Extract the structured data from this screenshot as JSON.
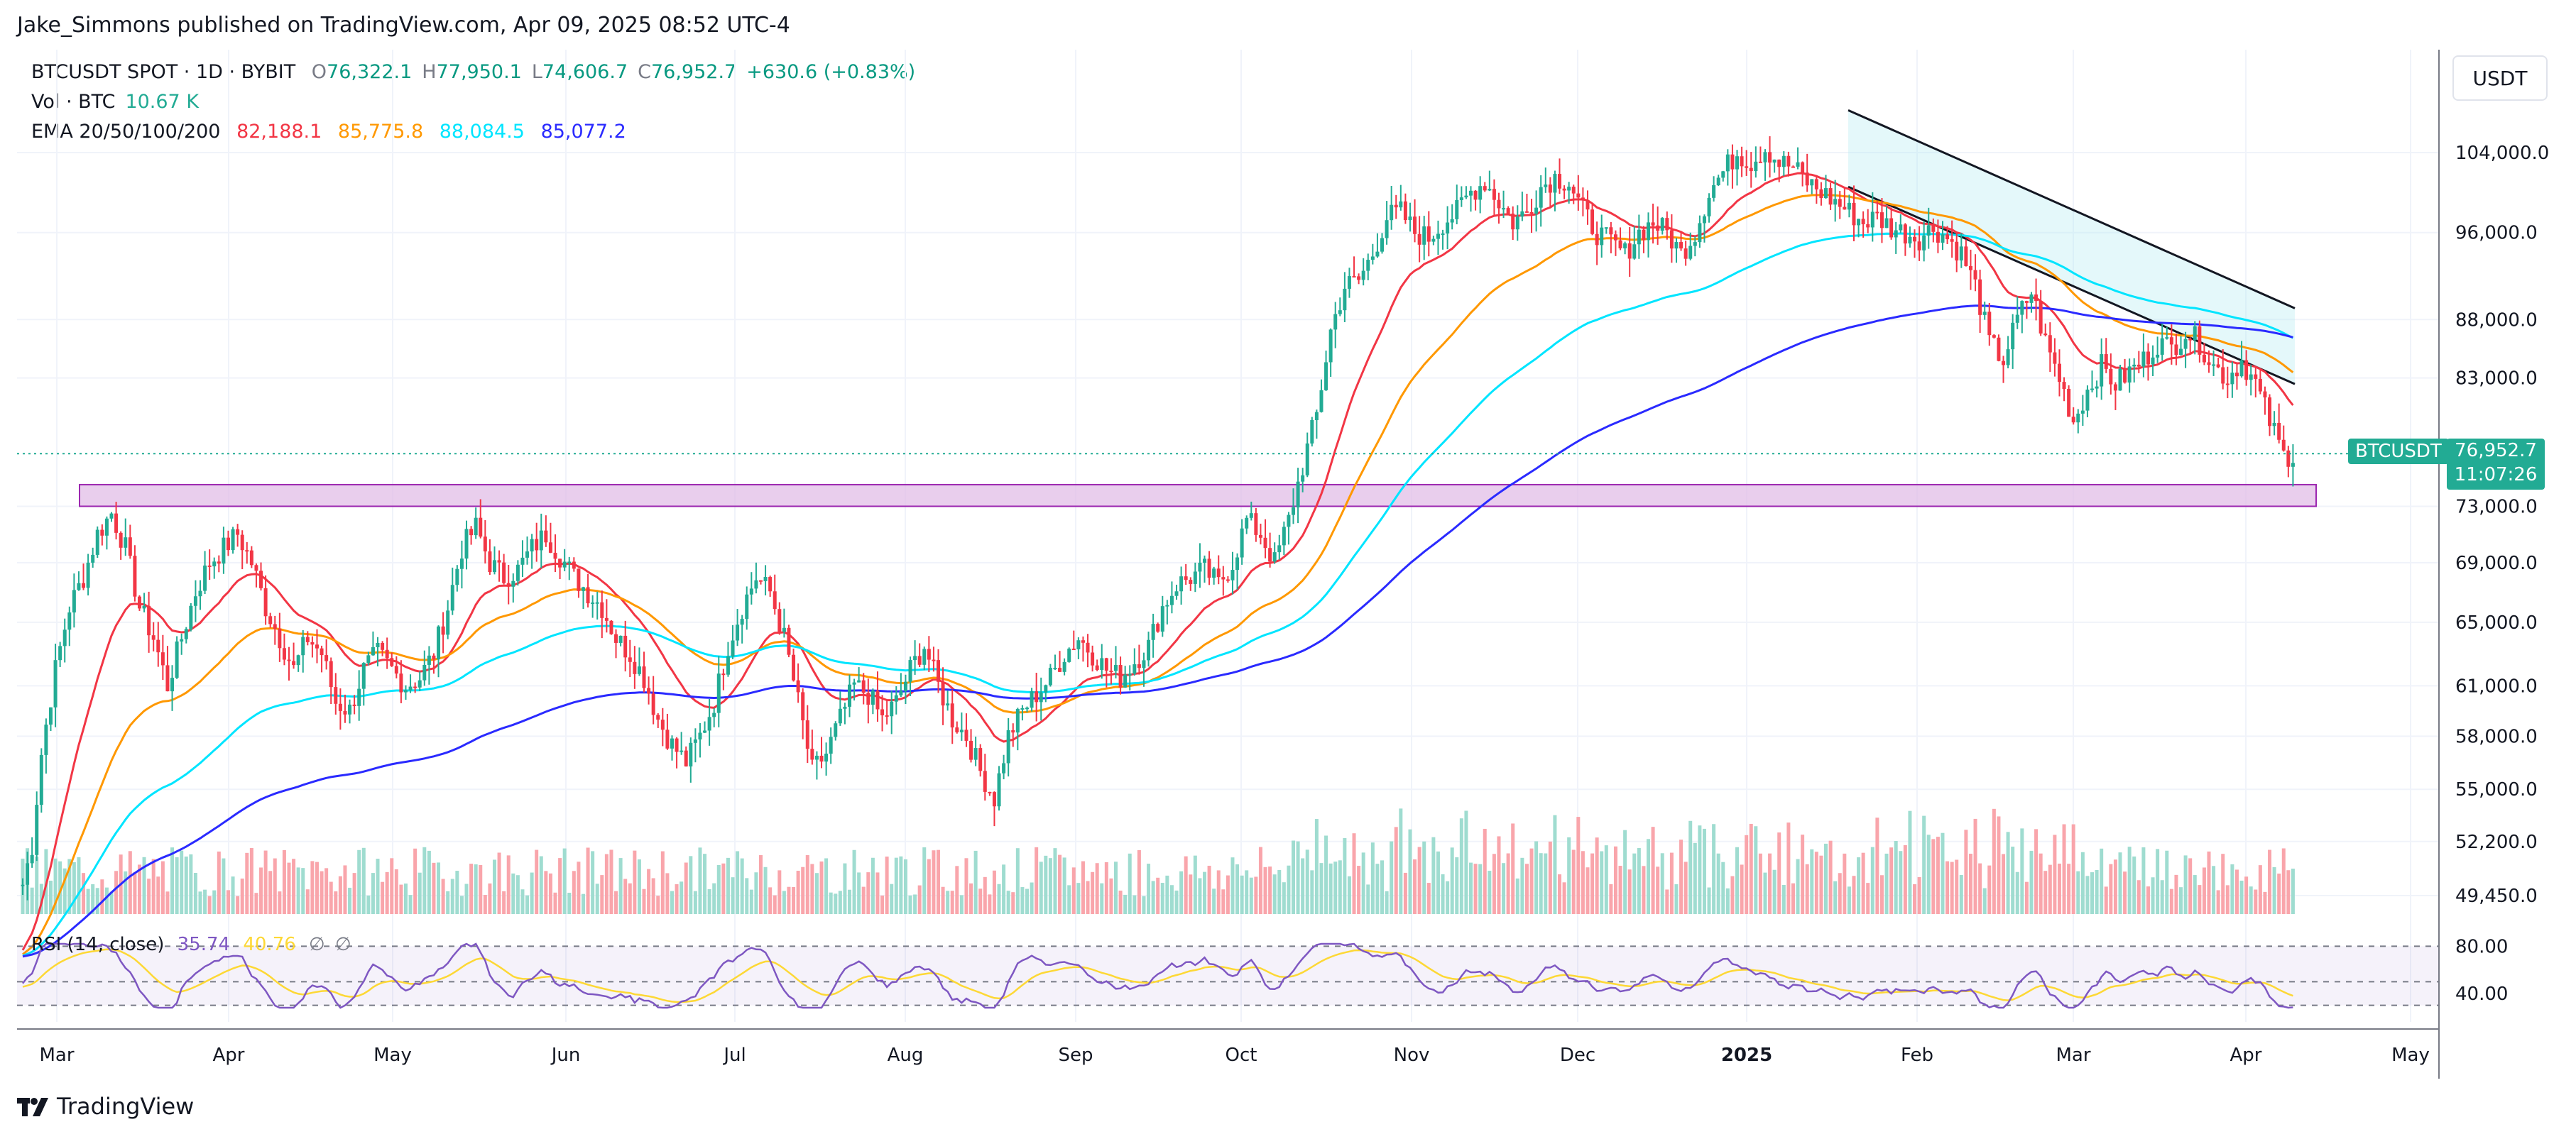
{
  "header": {
    "published_by": "Jake_Simmons published on TradingView.com, Apr 09, 2025 08:52 UTC-4"
  },
  "legend": {
    "symbol": "BTCUSDT SPOT · 1D · BYBIT",
    "open_label": "O",
    "open": "76,322.1",
    "high_label": "H",
    "high": "77,950.1",
    "low_label": "L",
    "low": "74,606.7",
    "close_label": "C",
    "close": "76,952.7",
    "change": "+630.6 (+0.83%)",
    "vol_label": "Vol · BTC",
    "vol_value": "10.67 K",
    "ema_label": "EMA 20/50/100/200",
    "ema20": "82,188.1",
    "ema50": "85,775.8",
    "ema100": "88,084.5",
    "ema200": "85,077.2"
  },
  "price_scale": {
    "currency": "USDT",
    "current_symbol": "BTCUSDT",
    "current_price": "76,952.7",
    "countdown": "11:07:26"
  },
  "rsi": {
    "label": "RSI (14, close)",
    "value": "35.74",
    "ma_value": "40.76",
    "extra1": "∅",
    "extra2": "∅",
    "level_upper": "80.00",
    "level_lower": "40.00"
  },
  "footer": {
    "brand": "TradingView"
  },
  "colors": {
    "up": "#22ab94",
    "down": "#f23645",
    "ema20": "#f23645",
    "ema50": "#ff9800",
    "ema100": "#00e5ff",
    "ema200": "#2a2aff",
    "zone": "#e1bee7",
    "zone_border": "#9c27b0"
  },
  "chart_data": {
    "type": "candlestick",
    "title": "BTCUSDT SPOT · 1D · BYBIT",
    "price_ticks": [
      104000,
      96000,
      88000,
      83000,
      73000,
      69000,
      65000,
      61000,
      58000,
      55000,
      52200,
      49450
    ],
    "price_tick_labels": [
      "104,000.0",
      "96,000.0",
      "88,000.0",
      "83,000.0",
      "73,000.0",
      "69,000.0",
      "65,000.0",
      "61,000.0",
      "58,000.0",
      "55,000.0",
      "52,200.0",
      "49,450.0"
    ],
    "month_labels": [
      "Mar",
      "Apr",
      "May",
      "Jun",
      "Jul",
      "Aug",
      "Sep",
      "Oct",
      "Nov",
      "Dec",
      "2025",
      "Feb",
      "Mar",
      "Apr",
      "May"
    ],
    "support_zone": [
      73000,
      74600
    ],
    "descending_channel": {
      "upper_start": [
        108500,
        "2025-01-20"
      ],
      "upper_end": [
        89000,
        "2025-04-09"
      ],
      "lower_start": [
        100500,
        "2025-01-20"
      ],
      "lower_end": [
        82500,
        "2025-04-09"
      ]
    },
    "price_path_knots": [
      [
        0,
        50000
      ],
      [
        2,
        52000
      ],
      [
        4,
        57000
      ],
      [
        7,
        62000
      ],
      [
        10,
        66000
      ],
      [
        13,
        68000
      ],
      [
        16,
        71000
      ],
      [
        19,
        72500
      ],
      [
        22,
        70000
      ],
      [
        25,
        66000
      ],
      [
        28,
        64000
      ],
      [
        31,
        61000
      ],
      [
        34,
        64000
      ],
      [
        37,
        67000
      ],
      [
        40,
        69000
      ],
      [
        43,
        70000
      ],
      [
        46,
        71000
      ],
      [
        49,
        69000
      ],
      [
        52,
        66000
      ],
      [
        55,
        64000
      ],
      [
        58,
        62000
      ],
      [
        61,
        64000
      ],
      [
        64,
        63000
      ],
      [
        67,
        60000
      ],
      [
        70,
        59500
      ],
      [
        73,
        62000
      ],
      [
        76,
        63000
      ],
      [
        79,
        62000
      ],
      [
        82,
        61000
      ],
      [
        85,
        61500
      ],
      [
        88,
        63000
      ],
      [
        91,
        66000
      ],
      [
        94,
        70000
      ],
      [
        97,
        71500
      ],
      [
        100,
        69000
      ],
      [
        103,
        68000
      ],
      [
        106,
        68500
      ],
      [
        109,
        70000
      ],
      [
        112,
        71000
      ],
      [
        115,
        69500
      ],
      [
        118,
        68000
      ],
      [
        121,
        67000
      ],
      [
        124,
        66000
      ],
      [
        127,
        64000
      ],
      [
        130,
        63000
      ],
      [
        133,
        61500
      ],
      [
        136,
        59000
      ],
      [
        139,
        57500
      ],
      [
        142,
        56500
      ],
      [
        145,
        58000
      ],
      [
        148,
        60000
      ],
      [
        151,
        63500
      ],
      [
        154,
        66000
      ],
      [
        157,
        68000
      ],
      [
        160,
        67000
      ],
      [
        163,
        64000
      ],
      [
        166,
        60000
      ],
      [
        169,
        56000
      ],
      [
        172,
        57000
      ],
      [
        175,
        59000
      ],
      [
        178,
        61000
      ],
      [
        181,
        60500
      ],
      [
        184,
        59000
      ],
      [
        187,
        60000
      ],
      [
        190,
        62000
      ],
      [
        193,
        63500
      ],
      [
        196,
        61000
      ],
      [
        199,
        59000
      ],
      [
        202,
        58000
      ],
      [
        205,
        56000
      ],
      [
        208,
        54500
      ],
      [
        211,
        58000
      ],
      [
        214,
        59500
      ],
      [
        217,
        60500
      ],
      [
        220,
        61500
      ],
      [
        223,
        63000
      ],
      [
        226,
        64000
      ],
      [
        229,
        63000
      ],
      [
        232,
        62000
      ],
      [
        235,
        61500
      ],
      [
        238,
        62500
      ],
      [
        241,
        63500
      ],
      [
        244,
        66000
      ],
      [
        247,
        67500
      ],
      [
        250,
        68000
      ],
      [
        253,
        68500
      ],
      [
        256,
        67500
      ],
      [
        259,
        69000
      ],
      [
        262,
        72000
      ],
      [
        265,
        71000
      ],
      [
        268,
        69000
      ],
      [
        271,
        72000
      ],
      [
        274,
        76000
      ],
      [
        277,
        80000
      ],
      [
        280,
        87000
      ],
      [
        283,
        91000
      ],
      [
        286,
        91500
      ],
      [
        289,
        94000
      ],
      [
        292,
        97500
      ],
      [
        295,
        98000
      ],
      [
        298,
        96000
      ],
      [
        301,
        95500
      ],
      [
        304,
        97000
      ],
      [
        307,
        98000
      ],
      [
        310,
        100000
      ],
      [
        313,
        101000
      ],
      [
        316,
        99000
      ],
      [
        319,
        97000
      ],
      [
        322,
        98000
      ],
      [
        325,
        100500
      ],
      [
        328,
        101500
      ],
      [
        331,
        101000
      ],
      [
        334,
        98000
      ],
      [
        337,
        96000
      ],
      [
        340,
        95000
      ],
      [
        343,
        94000
      ],
      [
        346,
        96000
      ],
      [
        349,
        97000
      ],
      [
        352,
        96000
      ],
      [
        355,
        94000
      ],
      [
        358,
        96000
      ],
      [
        361,
        100000
      ],
      [
        364,
        102000
      ],
      [
        367,
        104000
      ],
      [
        370,
        103000
      ],
      [
        373,
        104500
      ],
      [
        376,
        103000
      ],
      [
        379,
        102500
      ],
      [
        382,
        101000
      ],
      [
        385,
        100000
      ],
      [
        388,
        99000
      ],
      [
        391,
        98000
      ],
      [
        394,
        97000
      ],
      [
        397,
        97500
      ],
      [
        400,
        96500
      ],
      [
        403,
        96000
      ],
      [
        406,
        95500
      ],
      [
        409,
        96500
      ],
      [
        412,
        95500
      ],
      [
        415,
        94000
      ],
      [
        418,
        91000
      ],
      [
        421,
        86000
      ],
      [
        424,
        84500
      ],
      [
        427,
        88000
      ],
      [
        430,
        90500
      ],
      [
        433,
        86000
      ],
      [
        436,
        83000
      ],
      [
        439,
        79500
      ],
      [
        442,
        82000
      ],
      [
        445,
        84000
      ],
      [
        448,
        82500
      ],
      [
        451,
        83500
      ],
      [
        454,
        84500
      ],
      [
        457,
        86000
      ],
      [
        460,
        85500
      ],
      [
        463,
        87000
      ],
      [
        466,
        86000
      ],
      [
        469,
        84000
      ],
      [
        472,
        83000
      ],
      [
        475,
        84500
      ],
      [
        478,
        82500
      ],
      [
        481,
        79500
      ],
      [
        484,
        76800
      ],
      [
        486,
        76952
      ]
    ]
  }
}
